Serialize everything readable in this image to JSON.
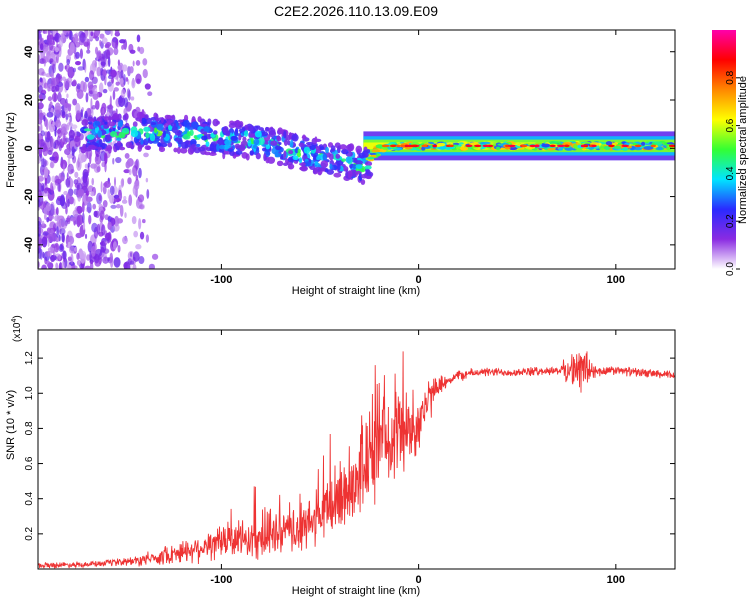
{
  "title": "C2E2.2026.110.13.09.E09",
  "chart_data": [
    {
      "type": "heatmap",
      "xlabel": "Height of straight line (km)",
      "ylabel": "Frequency (Hz)",
      "xlim": [
        -193,
        130
      ],
      "ylim": [
        -50,
        49
      ],
      "xticks": [
        -100,
        0,
        100
      ],
      "yticks": [
        -40,
        -20,
        0,
        20,
        40
      ],
      "grid": false,
      "colorbar": {
        "label": "Normalized spectral amplitude",
        "range": [
          0,
          1
        ],
        "ticks": [
          "0.0",
          "0.2",
          "0.4",
          "0.6",
          "0.8"
        ],
        "colors": [
          "#ffffff",
          "#8a2be2",
          "#2a2aff",
          "#00e5ff",
          "#33ff33",
          "#ffff00",
          "#ff8800",
          "#ff0000",
          "#ff00aa"
        ]
      },
      "ridge": {
        "x": [
          -160,
          -140,
          -120,
          -100,
          -80,
          -60,
          -45,
          -35,
          -28,
          -20,
          -10,
          0,
          10,
          30,
          60,
          90,
          110,
          130
        ],
        "freq_hz": [
          6,
          7,
          6,
          4,
          3,
          -2,
          -4,
          -6,
          -8,
          0,
          1,
          1,
          1,
          1,
          1,
          1,
          1,
          1
        ]
      },
      "features": "broadband scatter for x < -140 km; narrowband stable line near 1 Hz for x > -25 km"
    },
    {
      "type": "line",
      "xlabel": "Height of straight line (km)",
      "ylabel": "SNR (10 * v/v)",
      "y_multiplier": "(x10",
      "y_multiplier_exp": "4",
      "xlim": [
        -193,
        130
      ],
      "ylim": [
        0,
        1.36
      ],
      "xticks": [
        -100,
        0,
        100
      ],
      "yticks": [
        "0.2",
        "0.4",
        "0.6",
        "0.8",
        "1.0",
        "1.2"
      ],
      "series": [
        {
          "name": "SNR",
          "color": "#ee3333",
          "x": [
            -193,
            -160,
            -140,
            -120,
            -100,
            -80,
            -60,
            -50,
            -40,
            -30,
            -20,
            -10,
            -5,
            0,
            5,
            10,
            20,
            30,
            50,
            70,
            85,
            90,
            100,
            110,
            130
          ],
          "y": [
            0.02,
            0.03,
            0.05,
            0.1,
            0.15,
            0.18,
            0.22,
            0.3,
            0.4,
            0.55,
            0.7,
            0.8,
            0.78,
            0.85,
            0.95,
            1.05,
            1.1,
            1.12,
            1.12,
            1.13,
            1.14,
            1.12,
            1.13,
            1.12,
            1.1
          ],
          "spread": [
            0.02,
            0.02,
            0.04,
            0.08,
            0.12,
            0.15,
            0.16,
            0.2,
            0.28,
            0.32,
            0.34,
            0.3,
            0.28,
            0.24,
            0.16,
            0.06,
            0.04,
            0.03,
            0.03,
            0.03,
            0.18,
            0.04,
            0.03,
            0.03,
            0.03
          ]
        }
      ]
    }
  ]
}
